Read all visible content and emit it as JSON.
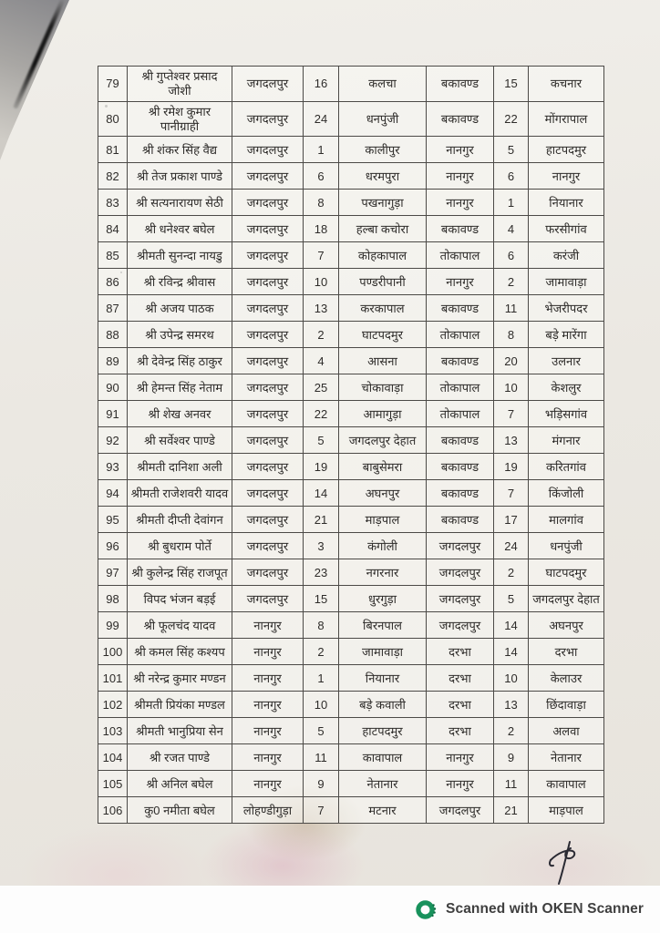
{
  "page": {
    "kind": "scanned-document",
    "paper_color": "#ebe8e2",
    "border_color": "#4c4a47"
  },
  "table": {
    "row_keys": [
      "sl",
      "name",
      "block",
      "num1",
      "place1",
      "block2",
      "num2",
      "place2"
    ],
    "rows": [
      {
        "sl": "79",
        "name": "श्री गुप्तेश्वर प्रसाद जोशी",
        "block": "जगदलपुर",
        "num1": "16",
        "place1": "कलचा",
        "block2": "बकावण्ड",
        "num2": "15",
        "place2": "कचनार"
      },
      {
        "sl": "80",
        "name": "श्री रमेश कुमार पानीग्राही",
        "block": "जगदलपुर",
        "num1": "24",
        "place1": "धनपुंजी",
        "block2": "बकावण्ड",
        "num2": "22",
        "place2": "मोंगरापाल"
      },
      {
        "sl": "81",
        "name": "श्री शंकर सिंह वैद्य",
        "block": "जगदलपुर",
        "num1": "1",
        "place1": "कालीपुर",
        "block2": "नानगुर",
        "num2": "5",
        "place2": "हाटपदमुर"
      },
      {
        "sl": "82",
        "name": "श्री तेज प्रकाश पाण्डे",
        "block": "जगदलपुर",
        "num1": "6",
        "place1": "धरमपुरा",
        "block2": "नानगुर",
        "num2": "6",
        "place2": "नानगुर"
      },
      {
        "sl": "83",
        "name": "श्री सत्यनारायण सेठी",
        "block": "जगदलपुर",
        "num1": "8",
        "place1": "पखनागुड़ा",
        "block2": "नानगुर",
        "num2": "1",
        "place2": "नियानार"
      },
      {
        "sl": "84",
        "name": "श्री धनेश्वर बघेल",
        "block": "जगदलपुर",
        "num1": "18",
        "place1": "हल्बा कचोरा",
        "block2": "बकावण्ड",
        "num2": "4",
        "place2": "फरसीगांव"
      },
      {
        "sl": "85",
        "name": "श्रीमती सुनन्दा नायडु",
        "block": "जगदलपुर",
        "num1": "7",
        "place1": "कोहकापाल",
        "block2": "तोकापाल",
        "num2": "6",
        "place2": "करंजी"
      },
      {
        "sl": "86",
        "name": "श्री रविन्द्र श्रीवास",
        "block": "जगदलपुर",
        "num1": "10",
        "place1": "पण्डरीपानी",
        "block2": "नानगुर",
        "num2": "2",
        "place2": "जामावाड़ा"
      },
      {
        "sl": "87",
        "name": "श्री अजय पाठक",
        "block": "जगदलपुर",
        "num1": "13",
        "place1": "करकापाल",
        "block2": "बकावण्ड",
        "num2": "11",
        "place2": "भेजरीपदर"
      },
      {
        "sl": "88",
        "name": "श्री उपेन्द्र समरथ",
        "block": "जगदलपुर",
        "num1": "2",
        "place1": "घाटपदमुर",
        "block2": "तोकापाल",
        "num2": "8",
        "place2": "बड़े मारेंगा"
      },
      {
        "sl": "89",
        "name": "श्री देवेन्द्र सिंह ठाकुर",
        "block": "जगदलपुर",
        "num1": "4",
        "place1": "आसना",
        "block2": "बकावण्ड",
        "num2": "20",
        "place2": "उलनार"
      },
      {
        "sl": "90",
        "name": "श्री हेमन्त सिंह नेताम",
        "block": "जगदलपुर",
        "num1": "25",
        "place1": "चोकावाड़ा",
        "block2": "तोकापाल",
        "num2": "10",
        "place2": "केशलुर"
      },
      {
        "sl": "91",
        "name": "श्री शेख अनवर",
        "block": "जगदलपुर",
        "num1": "22",
        "place1": "आमागुड़ा",
        "block2": "तोकापाल",
        "num2": "7",
        "place2": "भड़िसगांव"
      },
      {
        "sl": "92",
        "name": "श्री सर्वेश्वर पाण्डे",
        "block": "जगदलपुर",
        "num1": "5",
        "place1": "जगदलपुर देहात",
        "block2": "बकावण्ड",
        "num2": "13",
        "place2": "मंगनार"
      },
      {
        "sl": "93",
        "name": "श्रीमती दानिशा अली",
        "block": "जगदलपुर",
        "num1": "19",
        "place1": "बाबुसेमरा",
        "block2": "बकावण्ड",
        "num2": "19",
        "place2": "करितगांव"
      },
      {
        "sl": "94",
        "name": "श्रीमती राजेशवरी यादव",
        "block": "जगदलपुर",
        "num1": "14",
        "place1": "अघनपुर",
        "block2": "बकावण्ड",
        "num2": "7",
        "place2": "किंजोली"
      },
      {
        "sl": "95",
        "name": "श्रीमती दीप्ती देवांगन",
        "block": "जगदलपुर",
        "num1": "21",
        "place1": "माड़पाल",
        "block2": "बकावण्ड",
        "num2": "17",
        "place2": "मालगांव"
      },
      {
        "sl": "96",
        "name": "श्री बुधराम पोर्ते",
        "block": "जगदलपुर",
        "num1": "3",
        "place1": "कंगोली",
        "block2": "जगदलपुर",
        "num2": "24",
        "place2": "धनपुंजी"
      },
      {
        "sl": "97",
        "name": "श्री कुलेन्द्र सिंह राजपूत",
        "block": "जगदलपुर",
        "num1": "23",
        "place1": "नगरनार",
        "block2": "जगदलपुर",
        "num2": "2",
        "place2": "घाटपदमुर"
      },
      {
        "sl": "98",
        "name": "विपद भंजन बड़ई",
        "block": "जगदलपुर",
        "num1": "15",
        "place1": "धुरगुड़ा",
        "block2": "जगदलपुर",
        "num2": "5",
        "place2": "जगदलपुर देहात"
      },
      {
        "sl": "99",
        "name": "श्री फूलचंद यादव",
        "block": "नानगुर",
        "num1": "8",
        "place1": "बिरनपाल",
        "block2": "जगदलपुर",
        "num2": "14",
        "place2": "अघनपुर"
      },
      {
        "sl": "100",
        "name": "श्री कमल सिंह कश्यप",
        "block": "नानगुर",
        "num1": "2",
        "place1": "जामावाड़ा",
        "block2": "दरभा",
        "num2": "14",
        "place2": "दरभा"
      },
      {
        "sl": "101",
        "name": "श्री नरेन्द्र कुमार मण्डन",
        "block": "नानगुर",
        "num1": "1",
        "place1": "नियानार",
        "block2": "दरभा",
        "num2": "10",
        "place2": "केलाउर"
      },
      {
        "sl": "102",
        "name": "श्रीमती प्रियंका मण्डल",
        "block": "नानगुर",
        "num1": "10",
        "place1": "बड़े कवाली",
        "block2": "दरभा",
        "num2": "13",
        "place2": "छिंदावाड़ा"
      },
      {
        "sl": "103",
        "name": "श्रीमती भानुप्रिया सेन",
        "block": "नानगुर",
        "num1": "5",
        "place1": "हाटपदमुर",
        "block2": "दरभा",
        "num2": "2",
        "place2": "अलवा"
      },
      {
        "sl": "104",
        "name": "श्री रजत पाण्डे",
        "block": "नानगुर",
        "num1": "11",
        "place1": "कावापाल",
        "block2": "नानगुर",
        "num2": "9",
        "place2": "नेतानार"
      },
      {
        "sl": "105",
        "name": "श्री अनिल बघेल",
        "block": "नानगुर",
        "num1": "9",
        "place1": "नेतानार",
        "block2": "नानगुर",
        "num2": "11",
        "place2": "कावापाल"
      },
      {
        "sl": "106",
        "name": "कु0 नमीता बघेल",
        "block": "लोहण्डीगुड़ा",
        "num1": "7",
        "place1": "मटनार",
        "block2": "जगदलपुर",
        "num2": "21",
        "place2": "माड़पाल"
      }
    ]
  },
  "footer": {
    "watermark_text": "Scanned with OKEN Scanner",
    "brand_green": "#18925c"
  }
}
